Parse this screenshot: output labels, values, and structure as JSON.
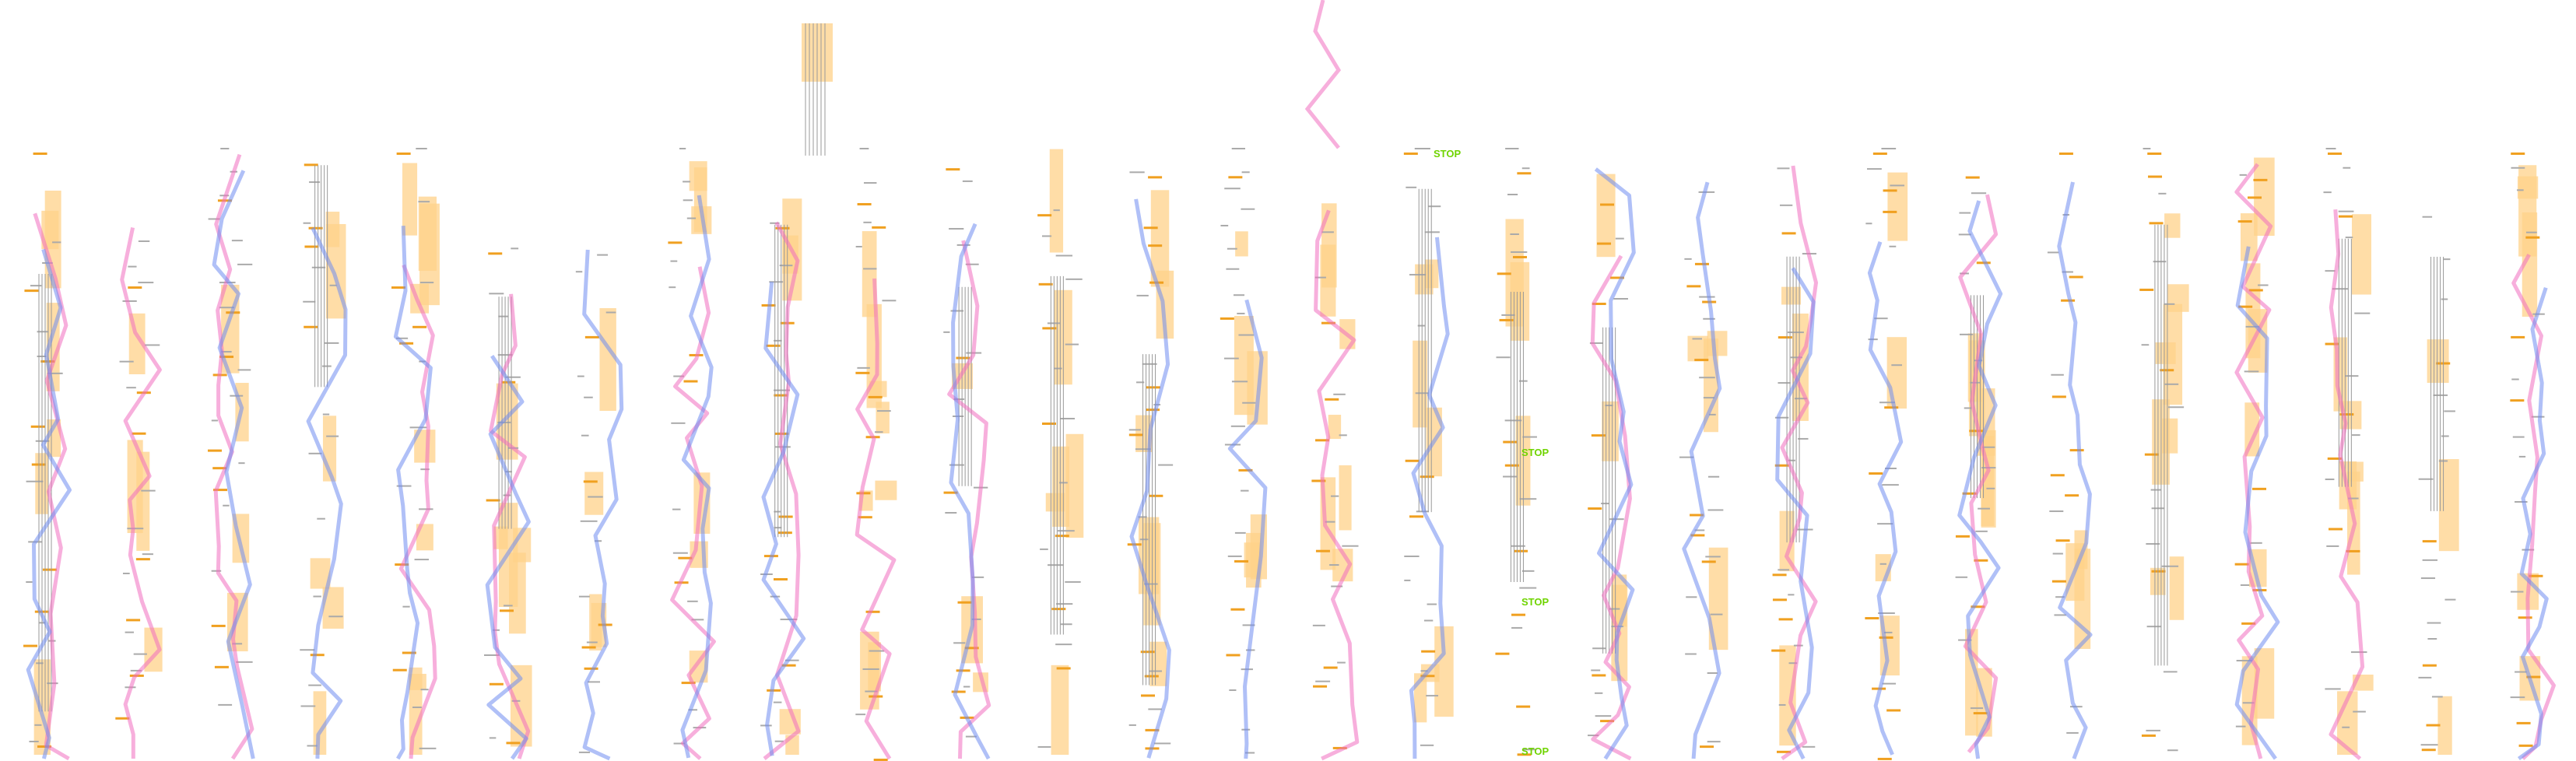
{
  "stop_labels": [
    "STOP",
    "STOP",
    "STOP",
    "STOP"
  ]
}
